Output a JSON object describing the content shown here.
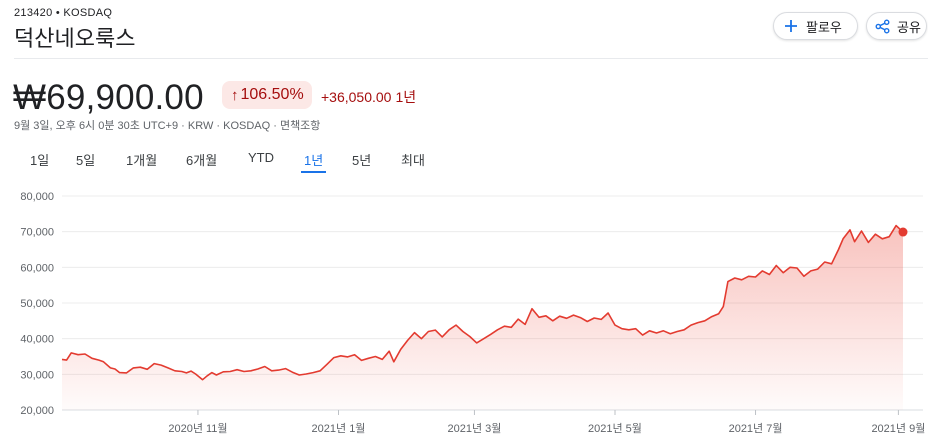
{
  "header": {
    "ticker": "213420 • KOSDAQ",
    "name": "덕산네오룩스",
    "follow_label": "팔로우",
    "share_label": "공유"
  },
  "quote": {
    "price": "₩69,900.00",
    "percent": "106.50%",
    "change": "+36,050.00",
    "period": "1년",
    "meta": "9월 3일, 오후 6시 0분 30초 UTC+9 · KRW · KOSDAQ · 면책조항"
  },
  "tabs": [
    {
      "label": "1일",
      "active": false
    },
    {
      "label": "5일",
      "active": false
    },
    {
      "label": "1개월",
      "active": false
    },
    {
      "label": "6개월",
      "active": false
    },
    {
      "label": "YTD",
      "active": false
    },
    {
      "label": "1년",
      "active": true
    },
    {
      "label": "5년",
      "active": false
    },
    {
      "label": "최대",
      "active": false
    }
  ],
  "colors": {
    "line": "#e33b30",
    "fill": "#ea4335",
    "positive": "#a50e0e",
    "positive_bg": "#fce8e6",
    "accent": "#1a73e8"
  },
  "chart_data": {
    "type": "area",
    "ylim": [
      20000,
      80000
    ],
    "yticks": [
      20000,
      30000,
      40000,
      50000,
      60000,
      70000,
      80000
    ],
    "ytick_labels": [
      "20,000",
      "30,000",
      "40,000",
      "50,000",
      "60,000",
      "70,000",
      "80,000"
    ],
    "xlim": [
      "2020-09-03",
      "2021-09-03"
    ],
    "x_ticks": [
      {
        "date": "2020-11-01",
        "label": "2020년 11월"
      },
      {
        "date": "2021-01-01",
        "label": "2021년 1월"
      },
      {
        "date": "2021-03-01",
        "label": "2021년 3월"
      },
      {
        "date": "2021-05-01",
        "label": "2021년 5월"
      },
      {
        "date": "2021-07-01",
        "label": "2021년 7월"
      },
      {
        "date": "2021-09-01",
        "label": "2021년 9월"
      }
    ],
    "grid": true,
    "series": [
      {
        "values": [
          [
            "2020-09-03",
            34200
          ],
          [
            "2020-09-05",
            34000
          ],
          [
            "2020-09-07",
            36000
          ],
          [
            "2020-09-10",
            35500
          ],
          [
            "2020-09-13",
            35700
          ],
          [
            "2020-09-16",
            34500
          ],
          [
            "2020-09-19",
            34000
          ],
          [
            "2020-09-21",
            33500
          ],
          [
            "2020-09-24",
            31800
          ],
          [
            "2020-09-26",
            31500
          ],
          [
            "2020-09-28",
            30500
          ],
          [
            "2020-10-01",
            30400
          ],
          [
            "2020-10-04",
            31800
          ],
          [
            "2020-10-07",
            32000
          ],
          [
            "2020-10-10",
            31400
          ],
          [
            "2020-10-13",
            33000
          ],
          [
            "2020-10-16",
            32600
          ],
          [
            "2020-10-19",
            31800
          ],
          [
            "2020-10-22",
            31000
          ],
          [
            "2020-10-25",
            30800
          ],
          [
            "2020-10-27",
            30400
          ],
          [
            "2020-10-29",
            30900
          ],
          [
            "2020-10-31",
            30100
          ],
          [
            "2020-11-03",
            28500
          ],
          [
            "2020-11-05",
            29600
          ],
          [
            "2020-11-07",
            30500
          ],
          [
            "2020-11-09",
            29800
          ],
          [
            "2020-11-12",
            30700
          ],
          [
            "2020-11-15",
            30800
          ],
          [
            "2020-11-18",
            31300
          ],
          [
            "2020-11-21",
            30800
          ],
          [
            "2020-11-24",
            31000
          ],
          [
            "2020-11-27",
            31500
          ],
          [
            "2020-11-30",
            32200
          ],
          [
            "2020-12-03",
            31000
          ],
          [
            "2020-12-06",
            31200
          ],
          [
            "2020-12-09",
            31600
          ],
          [
            "2020-12-12",
            30600
          ],
          [
            "2020-12-15",
            29800
          ],
          [
            "2020-12-18",
            30100
          ],
          [
            "2020-12-21",
            30500
          ],
          [
            "2020-12-24",
            31000
          ],
          [
            "2020-12-27",
            32800
          ],
          [
            "2020-12-30",
            34700
          ],
          [
            "2021-01-02",
            35200
          ],
          [
            "2021-01-05",
            34900
          ],
          [
            "2021-01-08",
            35500
          ],
          [
            "2021-01-11",
            33900
          ],
          [
            "2021-01-14",
            34500
          ],
          [
            "2021-01-17",
            35000
          ],
          [
            "2021-01-20",
            34200
          ],
          [
            "2021-01-23",
            36500
          ],
          [
            "2021-01-25",
            33500
          ],
          [
            "2021-01-28",
            37000
          ],
          [
            "2021-01-31",
            39500
          ],
          [
            "2021-02-03",
            41700
          ],
          [
            "2021-02-06",
            40000
          ],
          [
            "2021-02-09",
            42000
          ],
          [
            "2021-02-12",
            42400
          ],
          [
            "2021-02-15",
            40500
          ],
          [
            "2021-02-18",
            42500
          ],
          [
            "2021-02-21",
            43800
          ],
          [
            "2021-02-24",
            42000
          ],
          [
            "2021-02-27",
            40600
          ],
          [
            "2021-03-02",
            38800
          ],
          [
            "2021-03-05",
            40000
          ],
          [
            "2021-03-08",
            41200
          ],
          [
            "2021-03-11",
            42500
          ],
          [
            "2021-03-14",
            43500
          ],
          [
            "2021-03-17",
            43200
          ],
          [
            "2021-03-20",
            45500
          ],
          [
            "2021-03-23",
            44000
          ],
          [
            "2021-03-26",
            48400
          ],
          [
            "2021-03-29",
            46000
          ],
          [
            "2021-04-01",
            46400
          ],
          [
            "2021-04-04",
            45000
          ],
          [
            "2021-04-07",
            46300
          ],
          [
            "2021-04-10",
            45700
          ],
          [
            "2021-04-13",
            46600
          ],
          [
            "2021-04-16",
            45900
          ],
          [
            "2021-04-19",
            44800
          ],
          [
            "2021-04-22",
            45800
          ],
          [
            "2021-04-25",
            45400
          ],
          [
            "2021-04-28",
            47200
          ],
          [
            "2021-05-01",
            43800
          ],
          [
            "2021-05-04",
            42800
          ],
          [
            "2021-05-07",
            42500
          ],
          [
            "2021-05-10",
            42800
          ],
          [
            "2021-05-13",
            41000
          ],
          [
            "2021-05-16",
            42200
          ],
          [
            "2021-05-19",
            41600
          ],
          [
            "2021-05-22",
            42200
          ],
          [
            "2021-05-25",
            41400
          ],
          [
            "2021-05-28",
            42000
          ],
          [
            "2021-05-31",
            42500
          ],
          [
            "2021-06-03",
            43800
          ],
          [
            "2021-06-06",
            44500
          ],
          [
            "2021-06-09",
            45000
          ],
          [
            "2021-06-12",
            46200
          ],
          [
            "2021-06-15",
            47000
          ],
          [
            "2021-06-17",
            49000
          ],
          [
            "2021-06-19",
            56000
          ],
          [
            "2021-06-22",
            57000
          ],
          [
            "2021-06-25",
            56500
          ],
          [
            "2021-06-28",
            57500
          ],
          [
            "2021-07-01",
            57300
          ],
          [
            "2021-07-04",
            59000
          ],
          [
            "2021-07-07",
            58000
          ],
          [
            "2021-07-10",
            60500
          ],
          [
            "2021-07-13",
            58500
          ],
          [
            "2021-07-16",
            60000
          ],
          [
            "2021-07-19",
            59800
          ],
          [
            "2021-07-22",
            57500
          ],
          [
            "2021-07-25",
            59000
          ],
          [
            "2021-07-28",
            59500
          ],
          [
            "2021-07-31",
            61500
          ],
          [
            "2021-08-03",
            61000
          ],
          [
            "2021-08-06",
            65000
          ],
          [
            "2021-08-08",
            68000
          ],
          [
            "2021-08-11",
            70500
          ],
          [
            "2021-08-13",
            67200
          ],
          [
            "2021-08-16",
            70200
          ],
          [
            "2021-08-19",
            67000
          ],
          [
            "2021-08-22",
            69300
          ],
          [
            "2021-08-25",
            68000
          ],
          [
            "2021-08-28",
            68600
          ],
          [
            "2021-08-31",
            71700
          ],
          [
            "2021-09-03",
            69900
          ]
        ]
      }
    ]
  }
}
